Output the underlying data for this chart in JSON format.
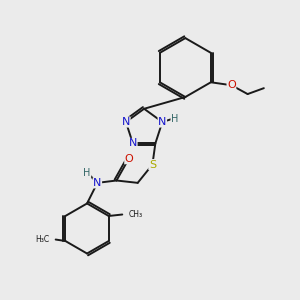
{
  "background_color": "#ebebeb",
  "bond_color": "#1a1a1a",
  "atom_colors": {
    "N": "#1515cc",
    "O": "#cc1100",
    "S": "#aaaa00",
    "H": "#336666",
    "C": "#1a1a1a"
  },
  "font_size": 8.0
}
